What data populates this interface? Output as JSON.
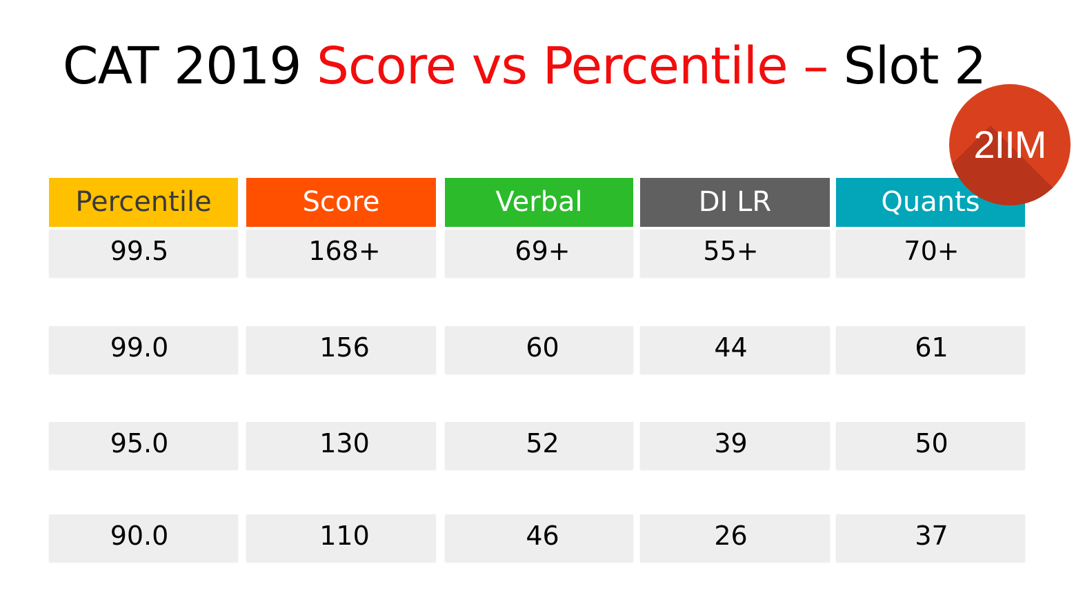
{
  "title": {
    "part1": "CAT 2019 ",
    "part2": "Score vs Percentile",
    "part3": " – ",
    "part4": "Slot 2"
  },
  "logo": {
    "text": "2IIM",
    "color": "#d9411e"
  },
  "columns": [
    {
      "label": "Percentile",
      "color": "#ffc000",
      "text_color": "#3a3a3a"
    },
    {
      "label": "Score",
      "color": "#ff5000",
      "text_color": "#ffffff"
    },
    {
      "label": "Verbal",
      "color": "#2bbb2b",
      "text_color": "#ffffff"
    },
    {
      "label": "DI LR",
      "color": "#606060",
      "text_color": "#ffffff"
    },
    {
      "label": "Quants",
      "color": "#03a5b8",
      "text_color": "#ffffff"
    }
  ],
  "rows": [
    [
      "99.5",
      "168+",
      "69+",
      "55+",
      "70+"
    ],
    [
      "99.0",
      "156",
      "60",
      "44",
      "61"
    ],
    [
      "95.0",
      "130",
      "52",
      "39",
      "50"
    ],
    [
      "90.0",
      "110",
      "46",
      "26",
      "37"
    ]
  ]
}
